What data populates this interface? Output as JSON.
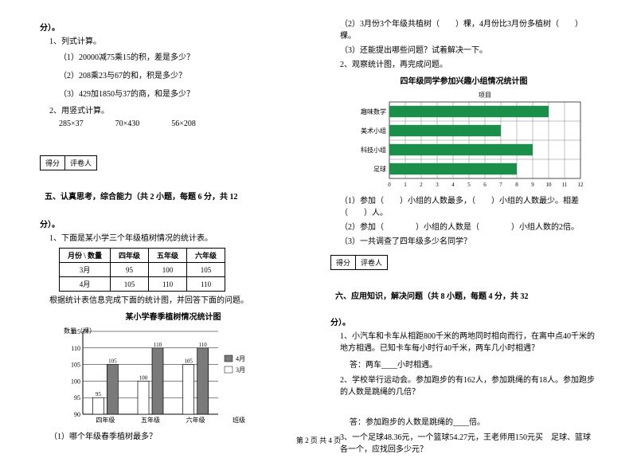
{
  "left": {
    "fen": "分）。",
    "q1": "1、列式计算。",
    "q1a": "（1）20000减75乘15的积，差是多少？",
    "q1b": "（2）208乘23与67的和，积是多少？",
    "q1c": "（3）429加1850与37的商，和是多少？",
    "q2": "2、用竖式计算。",
    "q2a": "285×37",
    "q2b": "70×430",
    "q2c": "56×208",
    "score1a": "得分",
    "score1b": "评卷人",
    "sec5": "五、认真思考，综合能力（共 2 小题，每题 6 分，共 12",
    "fen2": "分）。",
    "q3": "1、下面是某小学三个年级植树情况的统计表。",
    "table": {
      "head": [
        "月份 \\ 数量",
        "四年级",
        "五年级",
        "六年级"
      ],
      "rows": [
        [
          "3月",
          "95",
          "100",
          "105"
        ],
        [
          "4月",
          "105",
          "110",
          "110"
        ]
      ]
    },
    "q3note": "根据统计表信息完成下面的统计图，并回答下面的问题。",
    "chart1": {
      "title": "某小学春季植树情况统计图",
      "ylabel": "数量（棵）",
      "xlabel": "班级",
      "ymin": 90,
      "ymax": 115,
      "ystep": 5,
      "cats": [
        "四年级",
        "五年级",
        "六年级"
      ],
      "legend": [
        "4月",
        "3月"
      ],
      "legend_colors": [
        "#7a7a7a",
        "#ffffff"
      ],
      "bars_3": [
        95,
        100,
        105
      ],
      "bars_4": [
        105,
        110,
        110
      ],
      "bar_color_3": "#ffffff",
      "bar_color_4": "#7a7a7a",
      "labels_3": [
        "95",
        "100",
        "105"
      ],
      "labels_4": [
        "105",
        "110",
        "110"
      ],
      "grid": "#000"
    },
    "q3a": "（1）哪个年级春季植树最多？"
  },
  "right": {
    "r1a": "（2）3月份3个年级共植树（　　）棵，4月份比3月份多植树（　　）棵。",
    "r1b": "（3）还能提出哪些问题？试着解决一下。",
    "q2": "2、观察统计图，再完成问题。",
    "chart2": {
      "title": "四年级同学参加兴趣小组情况统计图",
      "cats": [
        "趣味数学",
        "美术小组",
        "科技小组",
        "足球"
      ],
      "xlabel": "项目",
      "xmax": 12,
      "xstep": 1,
      "vals": [
        10,
        7,
        9,
        8
      ],
      "bar_color": "#1a8f4a",
      "grid": "#666"
    },
    "r2a": "（1）参加（　　）小组的人数最多，（　　）小组的人数最少。相差（　　）人。",
    "r2b": "（2）参加（　　　　）小组的人数是（　　　　）小组人数的2倍。",
    "r2c": "（3）一共调查了四年级多少名同学？",
    "score2a": "得分",
    "score2b": "评卷人",
    "sec6": "六、应用知识，解决问题（共 8 小题，每题 4 分，共 32",
    "fen3": "分）。",
    "q3": "1、小汽车和卡车从相距800千米的两地同时相向而行，在离中点40千米的地方相遇。已知卡车每小时行40千米，两车几小时相遇？",
    "ans3": "答：两车____小时相遇。",
    "q4": "2、学校举行运动会。参加跑步的有162人，参加跳绳的有18人。参加跑步的人数是跳绳的几倍？",
    "ans4": "答：参加跑步的人数是跳绳的____倍。",
    "q5": "3、一个足球48.36元，一个篮球54.27元，王老师用150元买　足球、篮球各一个，应找回多少元？"
  },
  "footer": "第 2 页 共 4 页"
}
